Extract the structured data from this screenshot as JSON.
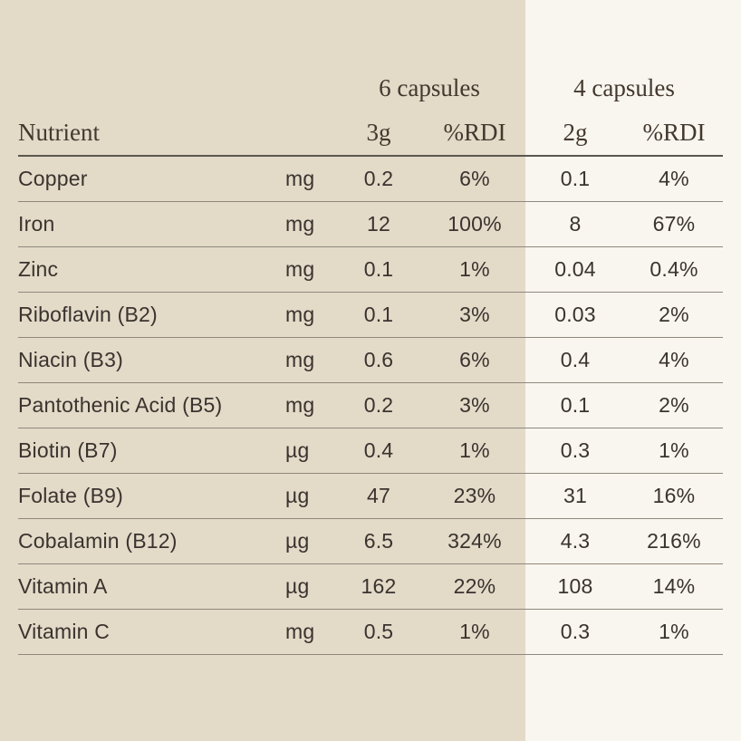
{
  "table": {
    "group_headers": [
      {
        "label": "6 capsules"
      },
      {
        "label": "4 capsules"
      }
    ],
    "column_headers": {
      "nutrient": "Nutrient",
      "dose_6cap": "3g",
      "rdi_6cap": "%RDI",
      "dose_4cap": "2g",
      "rdi_4cap": "%RDI"
    },
    "rows": [
      {
        "nutrient": "Copper",
        "unit": "mg",
        "v6": "0.2",
        "rdi6": "6%",
        "v4": "0.1",
        "rdi4": "4%"
      },
      {
        "nutrient": "Iron",
        "unit": "mg",
        "v6": "12",
        "rdi6": "100%",
        "v4": "8",
        "rdi4": "67%"
      },
      {
        "nutrient": "Zinc",
        "unit": "mg",
        "v6": "0.1",
        "rdi6": "1%",
        "v4": "0.04",
        "rdi4": "0.4%"
      },
      {
        "nutrient": "Riboflavin (B2)",
        "unit": "mg",
        "v6": "0.1",
        "rdi6": "3%",
        "v4": "0.03",
        "rdi4": "2%"
      },
      {
        "nutrient": "Niacin (B3)",
        "unit": "mg",
        "v6": "0.6",
        "rdi6": "6%",
        "v4": "0.4",
        "rdi4": "4%"
      },
      {
        "nutrient": "Pantothenic Acid (B5)",
        "unit": "mg",
        "v6": "0.2",
        "rdi6": "3%",
        "v4": "0.1",
        "rdi4": "2%"
      },
      {
        "nutrient": "Biotin (B7)",
        "unit": "µg",
        "v6": "0.4",
        "rdi6": "1%",
        "v4": "0.3",
        "rdi4": "1%"
      },
      {
        "nutrient": "Folate (B9)",
        "unit": "µg",
        "v6": "47",
        "rdi6": "23%",
        "v4": "31",
        "rdi4": "16%"
      },
      {
        "nutrient": "Cobalamin (B12)",
        "unit": "µg",
        "v6": "6.5",
        "rdi6": "324%",
        "v4": "4.3",
        "rdi4": "216%"
      },
      {
        "nutrient": "Vitamin A",
        "unit": "µg",
        "v6": "162",
        "rdi6": "22%",
        "v4": "108",
        "rdi4": "14%"
      },
      {
        "nutrient": "Vitamin C",
        "unit": "mg",
        "v6": "0.5",
        "rdi6": "1%",
        "v4": "0.3",
        "rdi4": "1%"
      }
    ]
  },
  "colors": {
    "left_bg": "#e3dac8",
    "right_bg": "#f8f6ef",
    "text": "#3a332e",
    "header_text": "#44382e",
    "header_line": "#5c564e",
    "row_line": "#90887c"
  }
}
